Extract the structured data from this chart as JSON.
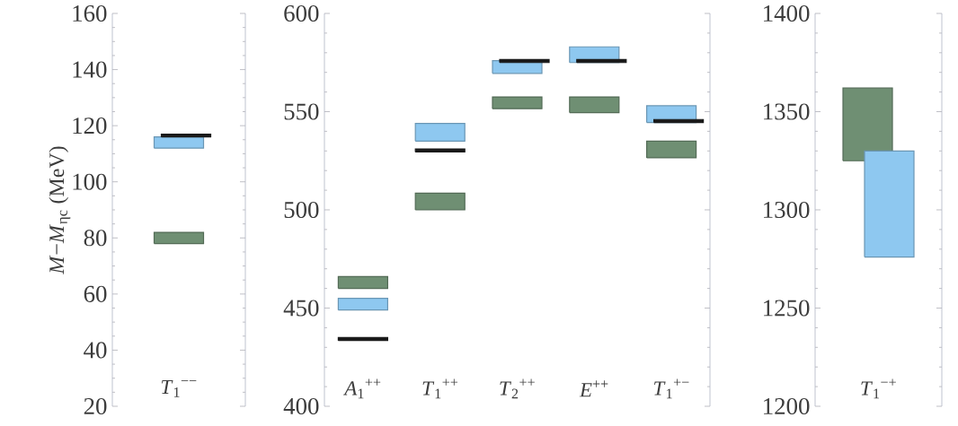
{
  "chart_data": [
    {
      "type": "bar",
      "ylabel": "*M*−*M*$_{ηc}$ (MeV)",
      "categories": [
        "*T*$_{1}$$^{−−}$"
      ],
      "ylim": [
        20,
        160
      ],
      "yticks": [
        20,
        40,
        60,
        80,
        100,
        120,
        140,
        160
      ],
      "grid": false,
      "series": [
        {
          "color": "#6f8f73",
          "base": [
            78
          ],
          "values": [
            4
          ]
        },
        {
          "color": "#8ec8f0",
          "base": [
            112
          ],
          "values": [
            4
          ]
        },
        {
          "color": "#1a1a1a",
          "base": [
            116
          ],
          "values": [
            1
          ]
        }
      ]
    },
    {
      "type": "bar",
      "categories": [
        "*A*$_{1}$$^{++}$",
        "*T*$_{1}$$^{++}$",
        "*T*$_{2}$$^{++}$",
        "*E*$^{++}$",
        "*T*$_{1}$$^{+−}$"
      ],
      "ylim": [
        400,
        600
      ],
      "yticks": [
        400,
        450,
        500,
        550,
        600
      ],
      "grid": false,
      "series": [
        {
          "color": "#6f8f73",
          "base": [
            460,
            500,
            551.5,
            549.5,
            526.5
          ],
          "values": [
            6,
            8.5,
            6,
            8,
            8.5
          ]
        },
        {
          "color": "#8ec8f0",
          "base": [
            449,
            535,
            569.5,
            575,
            544.5
          ],
          "values": [
            6,
            9,
            6.5,
            8,
            8.5
          ]
        },
        {
          "color": "#1a1a1a",
          "base": [
            433.5,
            529.5,
            575,
            575,
            544.5
          ],
          "values": [
            1.5,
            1.5,
            1.5,
            1.5,
            1.5
          ]
        }
      ]
    },
    {
      "type": "bar",
      "categories": [
        "*T*$_{1}$$^{−+}$"
      ],
      "ylim": [
        1200,
        1400
      ],
      "yticks": [
        1200,
        1250,
        1300,
        1350,
        1400
      ],
      "grid": false,
      "series": [
        {
          "color": "#6f8f73",
          "base": [
            1325
          ],
          "values": [
            37
          ]
        },
        {
          "color": "#8ec8f0",
          "base": [
            1276
          ],
          "values": [
            54
          ]
        }
      ]
    }
  ]
}
